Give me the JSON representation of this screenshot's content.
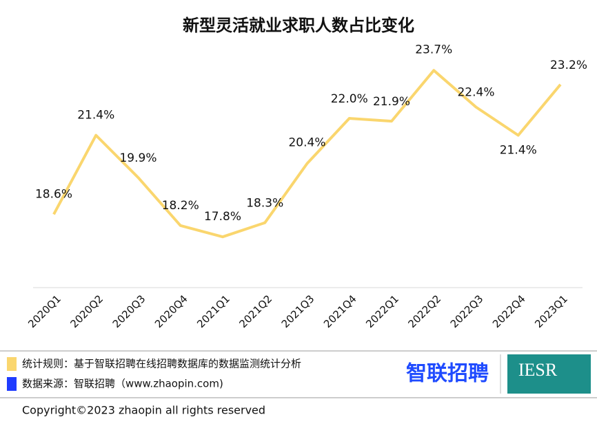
{
  "chart_data": {
    "type": "line",
    "title": "新型灵活就业求职人数占比变化",
    "categories": [
      "2020Q1",
      "2020Q2",
      "2020Q3",
      "2020Q4",
      "2021Q1",
      "2021Q2",
      "2021Q3",
      "2021Q4",
      "2022Q1",
      "2022Q2",
      "2022Q3",
      "2022Q4",
      "2023Q1"
    ],
    "series": [
      {
        "name": "新型灵活就业求职人数占比",
        "color": "#fad66e",
        "values": [
          18.6,
          21.4,
          19.9,
          18.2,
          17.8,
          18.3,
          20.4,
          22.0,
          21.9,
          23.7,
          22.4,
          21.4,
          23.2
        ],
        "value_labels": [
          "18.6%",
          "21.4%",
          "19.9%",
          "18.2%",
          "17.8%",
          "18.3%",
          "20.4%",
          "22.0%",
          "21.9%",
          "23.7%",
          "22.4%",
          "21.4%",
          "23.2%"
        ]
      }
    ],
    "ylim": [
      16,
      25
    ]
  },
  "footer": {
    "notes": [
      {
        "text": "统计规则：基于智联招聘在线招聘数据库的数据监测统计分析",
        "color": "#fad66e"
      },
      {
        "text": "数据来源：智联招聘（www.zhaopin.com)",
        "color": "#1f3cff"
      }
    ],
    "copyright": "Copyright©2023 zhaopin all rights reserved",
    "logos": [
      "智联招聘",
      "IESR"
    ]
  }
}
